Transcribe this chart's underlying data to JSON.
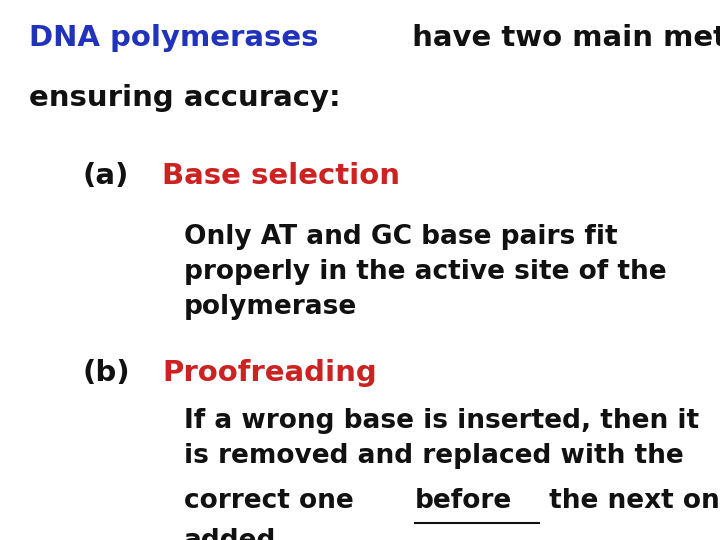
{
  "background_color": "#ffffff",
  "title_blue": "DNA polymerases",
  "title_color_blue": "#2233bb",
  "title_color_black": "#111111",
  "label_a": "(a)",
  "label_b": "(b)",
  "heading_a": "Base selection",
  "heading_b": "Proofreading",
  "heading_color": "#cc2222",
  "body_a": "Only AT and GC base pairs fit\nproperly in the active site of the\npolymerase",
  "body_color": "#111111",
  "font_size_title": 21,
  "font_size_label": 21,
  "font_size_heading": 21,
  "font_size_body": 19
}
